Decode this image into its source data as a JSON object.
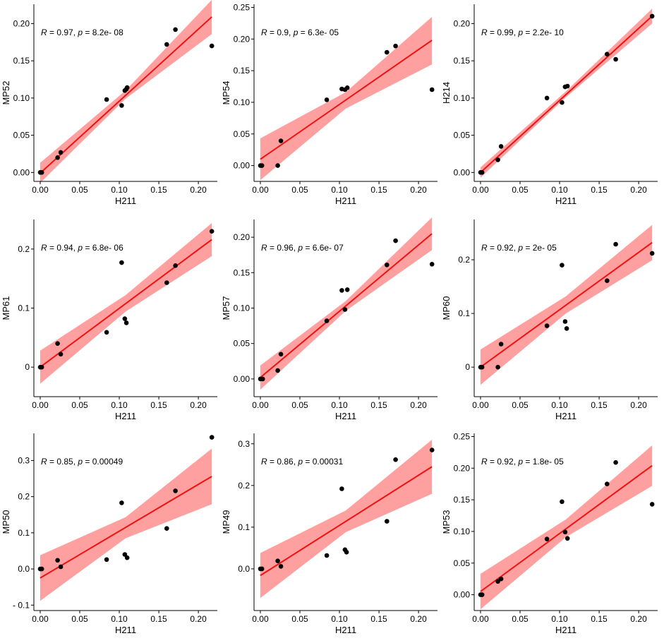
{
  "chart_data": [
    {
      "type": "scatter",
      "xlabel": "H211",
      "ylabel": "MP52",
      "annotation": {
        "r": "0.97",
        "p": "8.2e- 08"
      },
      "xlim": [
        -0.008,
        0.224
      ],
      "ylim": [
        -0.012,
        0.226
      ],
      "xticks": [
        0.0,
        0.05,
        0.1,
        0.15,
        0.2
      ],
      "xtick_labels": [
        "0.00",
        "0.05",
        "0.10",
        "0.15",
        "0.20"
      ],
      "yticks": [
        0.0,
        0.05,
        0.1,
        0.15,
        0.2
      ],
      "ytick_labels": [
        "0.00",
        "0.05",
        "0.10",
        "0.15",
        "0.20"
      ],
      "points": [
        [
          0.0,
          0.0
        ],
        [
          0.002,
          0.0
        ],
        [
          0.022,
          0.02
        ],
        [
          0.026,
          0.027
        ],
        [
          0.084,
          0.098
        ],
        [
          0.103,
          0.09
        ],
        [
          0.107,
          0.11
        ],
        [
          0.109,
          0.112
        ],
        [
          0.11,
          0.114
        ],
        [
          0.16,
          0.172
        ],
        [
          0.171,
          0.192
        ],
        [
          0.217,
          0.17
        ]
      ],
      "fit": {
        "x0": 0.0,
        "y0": -0.001,
        "x1": 0.217,
        "y1": 0.209
      },
      "band": [
        [
          0.0,
          -0.014,
          0.013
        ],
        [
          0.108,
          0.099,
          0.11
        ],
        [
          0.217,
          0.186,
          0.232
        ]
      ],
      "line_color": "#ee1111",
      "band_color": "#ff8080",
      "point_color": "#000000"
    },
    {
      "type": "scatter",
      "xlabel": "H211",
      "ylabel": "MP54",
      "annotation": {
        "r": "0.9",
        "p": "6.3e- 05"
      },
      "xlim": [
        -0.008,
        0.224
      ],
      "ylim": [
        -0.025,
        0.255
      ],
      "xticks": [
        0.0,
        0.05,
        0.1,
        0.15,
        0.2
      ],
      "xtick_labels": [
        "0.00",
        "0.05",
        "0.10",
        "0.15",
        "0.20"
      ],
      "yticks": [
        0.0,
        0.05,
        0.1,
        0.15,
        0.2,
        0.25
      ],
      "ytick_labels": [
        "0.00",
        "0.05",
        "0.10",
        "0.15",
        "0.20",
        "0.25"
      ],
      "points": [
        [
          0.0,
          0.0
        ],
        [
          0.002,
          0.0
        ],
        [
          0.022,
          0.0
        ],
        [
          0.026,
          0.039
        ],
        [
          0.084,
          0.104
        ],
        [
          0.103,
          0.121
        ],
        [
          0.107,
          0.12
        ],
        [
          0.11,
          0.123
        ],
        [
          0.16,
          0.179
        ],
        [
          0.171,
          0.189
        ],
        [
          0.217,
          0.12
        ]
      ],
      "fit": {
        "x0": 0.0,
        "y0": 0.01,
        "x1": 0.217,
        "y1": 0.198
      },
      "band": [
        [
          0.0,
          -0.023,
          0.043
        ],
        [
          0.108,
          0.09,
          0.116
        ],
        [
          0.217,
          0.16,
          0.235
        ]
      ],
      "line_color": "#ee1111",
      "band_color": "#ff8080",
      "point_color": "#000000"
    },
    {
      "type": "scatter",
      "xlabel": "H211",
      "ylabel": "H214",
      "annotation": {
        "r": "0.99",
        "p": "2.2e- 10"
      },
      "xlim": [
        -0.008,
        0.224
      ],
      "ylim": [
        -0.012,
        0.226
      ],
      "xticks": [
        0.0,
        0.05,
        0.1,
        0.15,
        0.2
      ],
      "xtick_labels": [
        "0.00",
        "0.05",
        "0.10",
        "0.15",
        "0.20"
      ],
      "yticks": [
        0.0,
        0.05,
        0.1,
        0.15,
        0.2
      ],
      "ytick_labels": [
        "0.00",
        "0.05",
        "0.10",
        "0.15",
        "0.20"
      ],
      "points": [
        [
          0.0,
          0.0
        ],
        [
          0.002,
          0.0
        ],
        [
          0.022,
          0.017
        ],
        [
          0.026,
          0.035
        ],
        [
          0.084,
          0.1
        ],
        [
          0.103,
          0.094
        ],
        [
          0.107,
          0.115
        ],
        [
          0.11,
          0.116
        ],
        [
          0.16,
          0.159
        ],
        [
          0.171,
          0.152
        ],
        [
          0.217,
          0.21
        ]
      ],
      "fit": {
        "x0": 0.0,
        "y0": 0.0,
        "x1": 0.217,
        "y1": 0.21
      },
      "band": [
        [
          0.0,
          -0.007,
          0.007
        ],
        [
          0.108,
          0.101,
          0.109
        ],
        [
          0.217,
          0.2,
          0.22
        ]
      ],
      "line_color": "#ee1111",
      "band_color": "#ff8080",
      "point_color": "#000000"
    },
    {
      "type": "scatter",
      "xlabel": "H211",
      "ylabel": "MP61",
      "annotation": {
        "r": "0.94",
        "p": "6.8e- 06"
      },
      "xlim": [
        -0.008,
        0.224
      ],
      "ylim": [
        -0.05,
        0.25
      ],
      "xticks": [
        0.0,
        0.05,
        0.1,
        0.15,
        0.2
      ],
      "xtick_labels": [
        "0.00",
        "0.05",
        "0.10",
        "0.15",
        "0.20"
      ],
      "yticks": [
        0.0,
        0.1,
        0.2
      ],
      "ytick_labels": [
        "0",
        "0.1",
        "0.2"
      ],
      "points": [
        [
          0.0,
          0.0
        ],
        [
          0.002,
          0.0
        ],
        [
          0.022,
          0.04
        ],
        [
          0.026,
          0.022
        ],
        [
          0.084,
          0.059
        ],
        [
          0.103,
          0.177
        ],
        [
          0.107,
          0.082
        ],
        [
          0.109,
          0.075
        ],
        [
          0.16,
          0.143
        ],
        [
          0.171,
          0.172
        ],
        [
          0.217,
          0.23
        ]
      ],
      "fit": {
        "x0": 0.0,
        "y0": 0.0,
        "x1": 0.217,
        "y1": 0.216
      },
      "band": [
        [
          0.0,
          -0.028,
          0.028
        ],
        [
          0.108,
          0.094,
          0.122
        ],
        [
          0.217,
          0.188,
          0.244
        ]
      ],
      "line_color": "#ee1111",
      "band_color": "#ff8080",
      "point_color": "#000000"
    },
    {
      "type": "scatter",
      "xlabel": "H211",
      "ylabel": "MP57",
      "annotation": {
        "r": "0.96",
        "p": "6.6e- 07"
      },
      "xlim": [
        -0.008,
        0.224
      ],
      "ylim": [
        -0.025,
        0.225
      ],
      "xticks": [
        0.0,
        0.05,
        0.1,
        0.15,
        0.2
      ],
      "xtick_labels": [
        "0.00",
        "0.05",
        "0.10",
        "0.15",
        "0.20"
      ],
      "yticks": [
        0.0,
        0.05,
        0.1,
        0.15,
        0.2
      ],
      "ytick_labels": [
        "0.00",
        "0.05",
        "0.10",
        "0.15",
        "0.20"
      ],
      "points": [
        [
          0.0,
          0.0
        ],
        [
          0.003,
          0.0
        ],
        [
          0.022,
          0.012
        ],
        [
          0.026,
          0.035
        ],
        [
          0.084,
          0.082
        ],
        [
          0.103,
          0.125
        ],
        [
          0.107,
          0.098
        ],
        [
          0.11,
          0.126
        ],
        [
          0.16,
          0.161
        ],
        [
          0.171,
          0.195
        ],
        [
          0.217,
          0.162
        ]
      ],
      "fit": {
        "x0": 0.0,
        "y0": 0.002,
        "x1": 0.217,
        "y1": 0.205
      },
      "band": [
        [
          0.0,
          -0.015,
          0.019
        ],
        [
          0.108,
          0.096,
          0.11
        ],
        [
          0.217,
          0.182,
          0.228
        ]
      ],
      "line_color": "#ee1111",
      "band_color": "#ff8080",
      "point_color": "#000000"
    },
    {
      "type": "scatter",
      "xlabel": "H211",
      "ylabel": "MP60",
      "annotation": {
        "r": "0.92",
        "p": "2e- 05"
      },
      "xlim": [
        -0.008,
        0.224
      ],
      "ylim": [
        -0.055,
        0.275
      ],
      "xticks": [
        0.0,
        0.05,
        0.1,
        0.15,
        0.2
      ],
      "xtick_labels": [
        "0.00",
        "0.05",
        "0.10",
        "0.15",
        "0.20"
      ],
      "yticks": [
        0.0,
        0.1,
        0.2
      ],
      "ytick_labels": [
        "0",
        "0.1",
        "0.2"
      ],
      "points": [
        [
          0.0,
          0.0
        ],
        [
          0.002,
          0.0
        ],
        [
          0.022,
          0.0
        ],
        [
          0.026,
          0.043
        ],
        [
          0.084,
          0.077
        ],
        [
          0.103,
          0.19
        ],
        [
          0.107,
          0.085
        ],
        [
          0.109,
          0.072
        ],
        [
          0.16,
          0.161
        ],
        [
          0.171,
          0.229
        ],
        [
          0.217,
          0.212
        ]
      ],
      "fit": {
        "x0": 0.0,
        "y0": 0.0,
        "x1": 0.217,
        "y1": 0.232
      },
      "band": [
        [
          0.0,
          -0.033,
          0.033
        ],
        [
          0.108,
          0.1,
          0.132
        ],
        [
          0.217,
          0.199,
          0.265
        ]
      ],
      "line_color": "#ee1111",
      "band_color": "#ff8080",
      "point_color": "#000000"
    },
    {
      "type": "scatter",
      "xlabel": "H211",
      "ylabel": "MP50",
      "annotation": {
        "r": "0.85",
        "p": "0.00049"
      },
      "xlim": [
        -0.008,
        0.224
      ],
      "ylim": [
        -0.115,
        0.375
      ],
      "xticks": [
        0.0,
        0.05,
        0.1,
        0.15,
        0.2
      ],
      "xtick_labels": [
        "0.00",
        "0.05",
        "0.10",
        "0.15",
        "0.20"
      ],
      "yticks": [
        -0.1,
        0.0,
        0.1,
        0.2,
        0.3
      ],
      "ytick_labels": [
        "- 0.1",
        "0.0",
        "0.1",
        "0.2",
        "0.3"
      ],
      "points": [
        [
          0.0,
          0.0
        ],
        [
          0.002,
          0.0
        ],
        [
          0.022,
          0.024
        ],
        [
          0.026,
          0.006
        ],
        [
          0.084,
          0.026
        ],
        [
          0.103,
          0.183
        ],
        [
          0.107,
          0.04
        ],
        [
          0.11,
          0.031
        ],
        [
          0.16,
          0.112
        ],
        [
          0.171,
          0.216
        ],
        [
          0.217,
          0.364
        ]
      ],
      "fit": {
        "x0": 0.0,
        "y0": -0.025,
        "x1": 0.217,
        "y1": 0.256
      },
      "band": [
        [
          0.0,
          -0.088,
          0.038
        ],
        [
          0.108,
          0.085,
          0.143
        ],
        [
          0.217,
          0.179,
          0.333
        ]
      ],
      "line_color": "#ee1111",
      "band_color": "#ff8080",
      "point_color": "#000000"
    },
    {
      "type": "scatter",
      "xlabel": "H211",
      "ylabel": "MP49",
      "annotation": {
        "r": "0.86",
        "p": "0.00031"
      },
      "xlim": [
        -0.008,
        0.224
      ],
      "ylim": [
        -0.1,
        0.325
      ],
      "xticks": [
        0.0,
        0.05,
        0.1,
        0.15,
        0.2
      ],
      "xtick_labels": [
        "0.00",
        "0.05",
        "0.10",
        "0.15",
        "0.20"
      ],
      "yticks": [
        0.0,
        0.1,
        0.2,
        0.3
      ],
      "ytick_labels": [
        "0.0",
        "0.1",
        "0.2",
        "0.3"
      ],
      "points": [
        [
          0.0,
          0.0
        ],
        [
          0.002,
          0.0
        ],
        [
          0.022,
          0.019
        ],
        [
          0.026,
          0.006
        ],
        [
          0.084,
          0.032
        ],
        [
          0.103,
          0.192
        ],
        [
          0.107,
          0.046
        ],
        [
          0.109,
          0.04
        ],
        [
          0.16,
          0.114
        ],
        [
          0.171,
          0.262
        ],
        [
          0.217,
          0.285
        ]
      ],
      "fit": {
        "x0": 0.0,
        "y0": -0.016,
        "x1": 0.217,
        "y1": 0.245
      },
      "band": [
        [
          0.0,
          -0.07,
          0.038
        ],
        [
          0.108,
          0.088,
          0.14
        ],
        [
          0.217,
          0.18,
          0.31
        ]
      ],
      "line_color": "#ee1111",
      "band_color": "#ff8080",
      "point_color": "#000000"
    },
    {
      "type": "scatter",
      "xlabel": "H211",
      "ylabel": "MP53",
      "annotation": {
        "r": "0.92",
        "p": "1.8e- 05"
      },
      "xlim": [
        -0.008,
        0.224
      ],
      "ylim": [
        -0.025,
        0.255
      ],
      "xticks": [
        0.0,
        0.05,
        0.1,
        0.15,
        0.2
      ],
      "xtick_labels": [
        "0.00",
        "0.05",
        "0.10",
        "0.15",
        "0.20"
      ],
      "yticks": [
        0.0,
        0.05,
        0.1,
        0.15,
        0.2,
        0.25
      ],
      "ytick_labels": [
        "0.00",
        "0.05",
        "0.10",
        "0.15",
        "0.20",
        "0.25"
      ],
      "points": [
        [
          0.0,
          0.0
        ],
        [
          0.002,
          0.0
        ],
        [
          0.022,
          0.021
        ],
        [
          0.026,
          0.025
        ],
        [
          0.084,
          0.088
        ],
        [
          0.103,
          0.147
        ],
        [
          0.107,
          0.099
        ],
        [
          0.11,
          0.089
        ],
        [
          0.16,
          0.175
        ],
        [
          0.171,
          0.209
        ],
        [
          0.217,
          0.143
        ]
      ],
      "fit": {
        "x0": 0.0,
        "y0": 0.005,
        "x1": 0.217,
        "y1": 0.204
      },
      "band": [
        [
          0.0,
          -0.023,
          0.033
        ],
        [
          0.108,
          0.091,
          0.119
        ],
        [
          0.217,
          0.172,
          0.236
        ]
      ],
      "line_color": "#ee1111",
      "band_color": "#ff8080",
      "point_color": "#000000"
    }
  ]
}
